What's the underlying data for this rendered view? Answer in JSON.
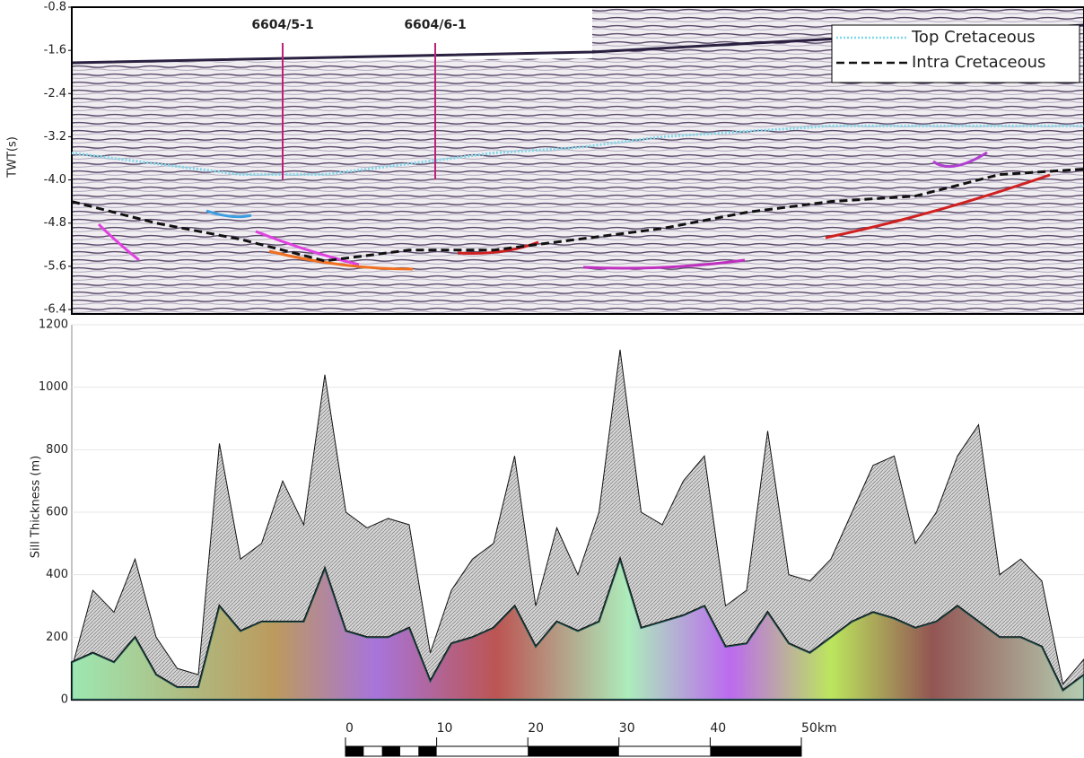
{
  "chart_data": [
    {
      "type": "line",
      "y_label": "TWT(s)",
      "ylim": [
        -6.4,
        -0.8
      ],
      "yticks": [
        -0.8,
        -1.6,
        -2.4,
        -3.2,
        {
          "value": -4,
          "label": "-4.0"
        },
        -4.8,
        -5.6,
        -6.4
      ],
      "legend": "upper right",
      "annotations": [
        {
          "text": "6604/5-1"
        },
        {
          "text": "6604/6-1"
        }
      ],
      "series": [
        {
          "name": "Top Cretaceous",
          "color": "#7fd8ea",
          "dash": "dotted",
          "values": [
            -3.5,
            -3.7,
            -3.9,
            -3.9,
            -3.7,
            -3.5,
            -3.4,
            -3.2,
            -3.1,
            -3.0,
            -3.0,
            -3.0,
            -3.0
          ]
        },
        {
          "name": "Intra Cretaceous",
          "color": "#111111",
          "dash": "dashed",
          "values": [
            -4.4,
            -4.8,
            -5.1,
            -5.5,
            -5.3,
            -5.3,
            -5.1,
            -4.9,
            -4.6,
            -4.4,
            -4.3,
            -3.9,
            -3.8
          ]
        }
      ]
    },
    {
      "type": "area",
      "y_label": "Sill Thickness (m)",
      "ylim": [
        0,
        1200
      ],
      "yticks": [
        0,
        200,
        400,
        600,
        800,
        1000,
        1200
      ],
      "grid": true,
      "series": [
        {
          "color": "#b8b8b8",
          "values": [
            100,
            350,
            280,
            450,
            200,
            100,
            80,
            820,
            450,
            500,
            700,
            560,
            1040,
            600,
            550,
            580,
            560,
            150,
            350,
            450,
            500,
            780,
            300,
            550,
            400,
            600,
            1120,
            600,
            560,
            700,
            780,
            300,
            350,
            860,
            400,
            380,
            450,
            600,
            750,
            780,
            500,
            600,
            780,
            880,
            400,
            450,
            380,
            50,
            130
          ]
        },
        {
          "color": "#3ed8d0",
          "values": [
            120,
            150,
            120,
            200,
            80,
            40,
            40,
            300,
            220,
            250,
            250,
            250,
            420,
            220,
            200,
            200,
            230,
            60,
            180,
            200,
            230,
            300,
            170,
            250,
            220,
            250,
            450,
            230,
            250,
            270,
            300,
            170,
            180,
            280,
            180,
            150,
            200,
            250,
            280,
            260,
            230,
            250,
            300,
            250,
            200,
            200,
            170,
            30,
            80
          ]
        }
      ],
      "scale_bar": {
        "xlim": [
          0,
          50
        ],
        "ticks": [
          0,
          10,
          20,
          30,
          40,
          {
            "value": 50,
            "label": "50km"
          }
        ]
      }
    }
  ]
}
